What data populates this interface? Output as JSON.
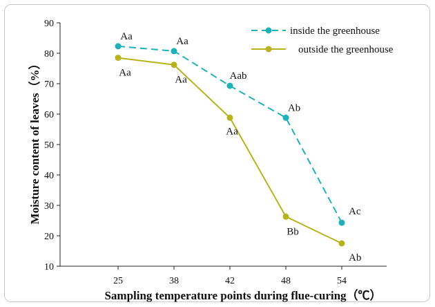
{
  "chart_data": {
    "type": "line",
    "categories": [
      "25",
      "38",
      "42",
      "48",
      "54"
    ],
    "ylim": [
      10,
      90
    ],
    "yticks": [
      "10",
      "20",
      "30",
      "40",
      "50",
      "60",
      "70",
      "80",
      "90"
    ],
    "xlabel": "Sampling temperature points during flue-curing（℃）",
    "ylabel": "Moisture content of leaves（%）",
    "series": [
      {
        "name": "inside the greenhouse",
        "values": [
          82.3,
          80.7,
          69.3,
          58.8,
          24.3
        ],
        "labels": [
          "Aa",
          "Aa",
          "Aab",
          "Ab",
          "Ac"
        ],
        "color": "#1bb3b8",
        "line_style": "dashed"
      },
      {
        "name": "outside the greenhouse",
        "values": [
          78.5,
          76.2,
          58.8,
          26.3,
          17.5
        ],
        "labels": [
          "Aa",
          "Aa",
          "Aa",
          "Bb",
          "Ab"
        ],
        "color": "#b5b51a",
        "line_style": "solid"
      }
    ],
    "legend_position": "top-right",
    "grid": false
  }
}
